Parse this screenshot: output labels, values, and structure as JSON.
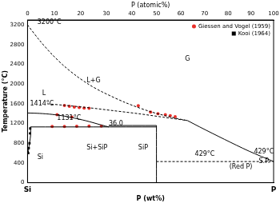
{
  "chart_data": {
    "type": "scatter",
    "xlabel": "P (wt%)",
    "x2label": "P (atomic%)",
    "ylabel": "Temperature (°C)",
    "xlim": [
      0,
      100
    ],
    "xticks": [
      {
        "value": 0,
        "label": "Si"
      },
      {
        "value": 100,
        "label": "P"
      }
    ],
    "x2lim": [
      0,
      100
    ],
    "x2ticks": [
      {
        "value": 0,
        "label": "0"
      },
      {
        "value": 10.92,
        "label": "10"
      },
      {
        "value": 21.6,
        "label": "20"
      },
      {
        "value": 32.07,
        "label": "30"
      },
      {
        "value": 42.37,
        "label": "40"
      },
      {
        "value": 52.44,
        "label": "50"
      },
      {
        "value": 62.32,
        "label": "60"
      },
      {
        "value": 71.98,
        "label": "70"
      },
      {
        "value": 81.52,
        "label": "80"
      },
      {
        "value": 90.84,
        "label": "90"
      },
      {
        "value": 100,
        "label": "100"
      }
    ],
    "ylim": [
      0,
      3300
    ],
    "yticks": [
      0,
      400,
      800,
      1200,
      1600,
      2000,
      2400,
      2800,
      3200
    ],
    "grid": false,
    "legend": "upper right",
    "series": [
      {
        "color": "#000000",
        "line_style": "dashed",
        "marker": "none",
        "x": [
          0,
          5,
          10,
          15,
          20,
          25,
          30,
          40,
          50,
          60,
          65
        ],
        "values": [
          3200,
          2880,
          2600,
          2360,
          2160,
          1990,
          1850,
          1620,
          1440,
          1310,
          1260
        ]
      },
      {
        "color": "#000000",
        "line_style": "dashed",
        "marker": "none",
        "x": [
          8,
          15,
          25,
          35,
          45,
          55,
          65
        ],
        "values": [
          1600,
          1570,
          1520,
          1460,
          1400,
          1330,
          1260
        ]
      },
      {
        "color": "#000000",
        "line_style": "solid",
        "marker": "none",
        "x": [
          65,
          70,
          80,
          90,
          100
        ],
        "values": [
          1260,
          1130,
          880,
          640,
          429
        ]
      },
      {
        "color": "#000000",
        "line_style": "solid",
        "marker": "none",
        "x": [
          0,
          5,
          10,
          15,
          20,
          25,
          30,
          33
        ],
        "values": [
          1414,
          1405,
          1385,
          1350,
          1300,
          1240,
          1170,
          1131
        ]
      },
      {
        "color": "#000000",
        "line_style": "solid",
        "marker": "none",
        "x": [
          1.2,
          52.4
        ],
        "values": [
          1131,
          1131
        ]
      },
      {
        "color": "#000000",
        "line_style": "solid",
        "marker": "none",
        "x": [
          33,
          52.4
        ],
        "values": [
          1160,
          1160
        ]
      },
      {
        "color": "#000000",
        "line_style": "solid",
        "marker": "none",
        "x": [
          52.4,
          52.4
        ],
        "values": [
          0,
          1160
        ]
      },
      {
        "color": "#000000",
        "line_style": "solid",
        "marker": "none",
        "x": [
          1.2,
          1.3,
          1.1,
          0.8,
          0.5,
          0.3
        ],
        "values": [
          1131,
          1000,
          900,
          800,
          700,
          600
        ]
      },
      {
        "color": "#000000",
        "line_style": "dashed",
        "marker": "none",
        "x": [
          52.4,
          100
        ],
        "values": [
          429,
          429
        ]
      },
      {
        "name": "Giessen and Vogel (1959)",
        "color": "#e8302a",
        "line_style": "none",
        "marker": "circle",
        "x": [
          15,
          17,
          19,
          21,
          23,
          25,
          10,
          15,
          20,
          25,
          30,
          45,
          50,
          53,
          56,
          58,
          60,
          12,
          18
        ],
        "values": [
          1565,
          1550,
          1535,
          1525,
          1515,
          1510,
          1140,
          1140,
          1145,
          1150,
          1150,
          1560,
          1430,
          1400,
          1380,
          1360,
          1340,
          1380,
          1330
        ]
      },
      {
        "name": "Kooi (1964)",
        "color": "#000000",
        "line_style": "none",
        "marker": "square",
        "x": [
          0.3,
          0.5,
          0.8,
          1.0,
          1.1
        ],
        "values": [
          600,
          700,
          800,
          1000,
          1100
        ]
      }
    ],
    "annotations": [
      {
        "text": "3200°C",
        "x": 4,
        "y": 3180
      },
      {
        "text": "L+G",
        "x": 24,
        "y": 2000
      },
      {
        "text": "G",
        "x": 64,
        "y": 2450
      },
      {
        "text": "L",
        "x": 6,
        "y": 1750
      },
      {
        "text": "1414°C",
        "x": 1,
        "y": 1540
      },
      {
        "text": "1131°C",
        "x": 12,
        "y": 1250
      },
      {
        "text": "36.0",
        "x": 33,
        "y": 1131
      },
      {
        "text": "Si",
        "x": 4,
        "y": 450
      },
      {
        "text": "Si+SiP",
        "x": 24,
        "y": 650
      },
      {
        "text": "SiP",
        "x": 45,
        "y": 650
      },
      {
        "text": "429°C",
        "x": 68,
        "y": 520
      },
      {
        "text": "429°C",
        "x": 92,
        "y": 560
      },
      {
        "text": "S.P.",
        "x": 94,
        "y": 360
      },
      {
        "text": "(Red P)",
        "x": 82,
        "y": 250
      }
    ]
  }
}
